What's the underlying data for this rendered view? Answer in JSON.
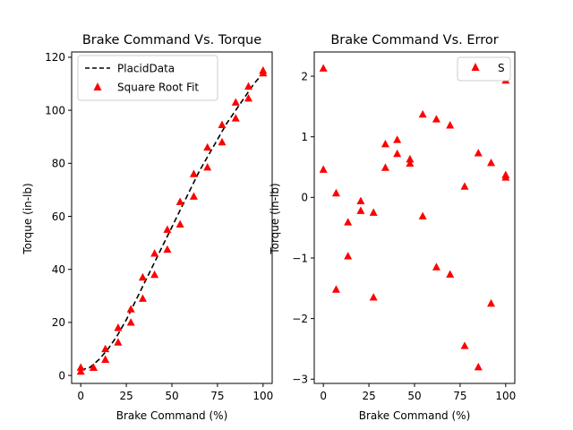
{
  "colors": {
    "marker": "#ff0000",
    "line": "#000000",
    "axis": "#000000"
  },
  "chart_data": [
    {
      "type": "line",
      "title": "Brake Command Vs. Torque",
      "xlabel": "Brake Command (%)",
      "ylabel": "Torque (in-lb)",
      "xlim": [
        -5,
        105
      ],
      "ylim": [
        -3,
        122
      ],
      "xticks": [
        0,
        25,
        50,
        75,
        100
      ],
      "yticks": [
        0,
        20,
        40,
        60,
        80,
        100,
        120
      ],
      "grid": false,
      "legend_position": "top-left",
      "series": [
        {
          "name": "PlacidData",
          "style": "dashed-line",
          "x": [
            0,
            5,
            10,
            15,
            20,
            25,
            30,
            35,
            40,
            45,
            50,
            55,
            60,
            65,
            70,
            75,
            80,
            85,
            90,
            95,
            100
          ],
          "y": [
            2,
            3,
            6,
            10,
            15,
            21,
            28,
            35,
            42,
            49,
            56,
            63,
            70,
            77,
            83,
            89,
            95,
            100,
            105,
            110,
            114
          ]
        },
        {
          "name": "Square Root Fit",
          "style": "triangle-markers",
          "x": [
            0,
            0,
            7,
            7,
            13.5,
            13.5,
            20.5,
            20.5,
            27.5,
            27.5,
            34,
            34,
            40.5,
            40.5,
            47.5,
            47.5,
            54.5,
            54.5,
            62,
            62,
            69.5,
            69.5,
            77.5,
            77.5,
            85,
            85,
            92,
            92,
            100,
            100
          ],
          "y": [
            1.5,
            3,
            3,
            3,
            6,
            10,
            12.5,
            18,
            20,
            25,
            29,
            37,
            38,
            46,
            47.5,
            55,
            57,
            65.5,
            67.5,
            76,
            78.5,
            86,
            88,
            94.5,
            97,
            103,
            104.5,
            109,
            114,
            115
          ]
        }
      ]
    },
    {
      "type": "scatter",
      "title": "Brake Command Vs. Error",
      "xlabel": "Brake Command (%)",
      "ylabel": "Torque (in-lb)",
      "xlim": [
        -5,
        105
      ],
      "ylim": [
        -3.07,
        2.4
      ],
      "xticks": [
        0,
        25,
        50,
        75,
        100
      ],
      "yticks": [
        -3,
        -2,
        -1,
        0,
        1,
        2
      ],
      "grid": false,
      "legend_position": "top-right",
      "series": [
        {
          "name": "S",
          "style": "triangle-markers",
          "x": [
            0,
            0,
            7,
            7,
            13.5,
            13.5,
            20.5,
            20.5,
            27.5,
            27.5,
            34,
            34,
            40.5,
            40.5,
            47.5,
            47.5,
            54.5,
            54.5,
            62,
            62,
            69.5,
            69.5,
            77.5,
            77.5,
            85,
            85,
            92,
            92,
            100,
            100,
            100
          ],
          "y": [
            2.13,
            0.46,
            0.07,
            -1.52,
            -0.41,
            -0.97,
            -0.06,
            -0.22,
            -0.25,
            -1.65,
            0.88,
            0.49,
            0.95,
            0.72,
            0.63,
            0.56,
            1.37,
            -0.31,
            1.29,
            -1.15,
            1.19,
            -1.27,
            0.18,
            -2.45,
            0.73,
            -2.8,
            0.57,
            -1.75,
            0.37,
            0.33,
            1.93
          ]
        }
      ]
    }
  ]
}
